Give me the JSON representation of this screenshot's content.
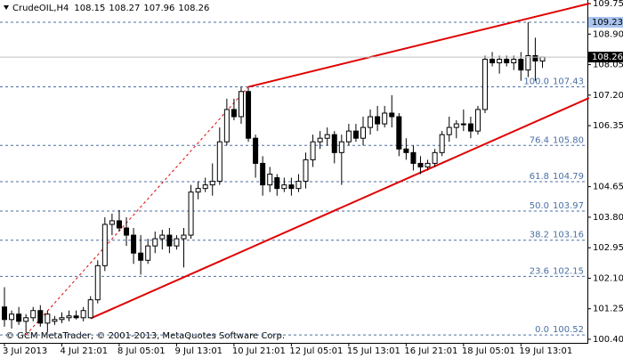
{
  "chart_data": {
    "type": "candlestick",
    "title": "CrudeOIL,H4",
    "footer": "© GCM MetaTrader, © 2001-2013, MetaQuotes Software Corp.",
    "categories": [
      "3 Jul 2013",
      null,
      null,
      null,
      null,
      null,
      null,
      null,
      "4 Jul 21:01",
      null,
      null,
      null,
      null,
      null,
      null,
      null,
      "8 Jul 05:01",
      null,
      null,
      null,
      null,
      null,
      null,
      null,
      "9 Jul 13:01",
      null,
      null,
      null,
      null,
      null,
      null,
      null,
      "10 Jul 21:01",
      null,
      null,
      null,
      null,
      null,
      null,
      null,
      "12 Jul 05:01",
      null,
      null,
      null,
      null,
      null,
      null,
      null,
      "15 Jul 13:01",
      null,
      null,
      null,
      null,
      null,
      null,
      null,
      "16 Jul 21:01",
      null,
      null,
      null,
      null,
      null,
      null,
      null,
      "18 Jul 05:01",
      null,
      null,
      null,
      null,
      null,
      null,
      null,
      "19 Jul 13:01",
      null,
      null,
      null
    ],
    "open": [
      101.3,
      100.95,
      101.1,
      100.9,
      101.0,
      101.2,
      100.85,
      100.9,
      100.95,
      101.0,
      101.05,
      101.0,
      101.0,
      101.5,
      102.45,
      103.6,
      103.7,
      103.5,
      103.3,
      102.8,
      102.6,
      103.0,
      103.2,
      103.3,
      103.0,
      103.2,
      103.3,
      104.5,
      104.6,
      104.7,
      104.8,
      105.9,
      106.8,
      106.6,
      107.3,
      106.0,
      105.3,
      104.7,
      104.9,
      104.6,
      104.7,
      104.6,
      104.8,
      105.4,
      105.9,
      106.0,
      106.1,
      105.6,
      105.9,
      106.2,
      106.0,
      106.3,
      106.6,
      106.4,
      106.7,
      106.6,
      105.7,
      105.6,
      105.3,
      105.2,
      105.3,
      105.6,
      106.1,
      106.3,
      106.4,
      106.4,
      106.2,
      106.8,
      108.2,
      108.1,
      108.2,
      108.1,
      108.2,
      107.9,
      108.3,
      108.15
    ],
    "high": [
      101.85,
      101.2,
      101.3,
      101.1,
      101.3,
      101.35,
      101.2,
      101.05,
      101.15,
      101.2,
      101.2,
      101.3,
      101.6,
      102.6,
      103.8,
      103.9,
      104.0,
      103.8,
      103.5,
      103.3,
      103.2,
      103.4,
      103.45,
      103.5,
      103.3,
      103.5,
      104.7,
      104.8,
      104.9,
      105.3,
      106.3,
      107.1,
      107.1,
      107.43,
      107.4,
      106.1,
      105.5,
      105.2,
      105.0,
      104.9,
      104.9,
      105.0,
      105.6,
      106.1,
      106.2,
      106.3,
      106.2,
      106.1,
      106.4,
      106.4,
      106.6,
      106.8,
      106.9,
      106.9,
      107.2,
      106.7,
      106.0,
      105.8,
      105.5,
      105.4,
      105.7,
      106.2,
      106.6,
      106.5,
      106.8,
      106.6,
      106.9,
      108.3,
      108.4,
      108.3,
      108.3,
      108.3,
      108.4,
      109.23,
      108.8,
      108.27
    ],
    "low": [
      100.75,
      100.7,
      100.8,
      100.6,
      100.9,
      100.75,
      100.6,
      100.8,
      100.85,
      100.9,
      100.95,
      100.9,
      100.98,
      101.4,
      102.3,
      103.3,
      103.4,
      103.0,
      102.5,
      102.2,
      102.5,
      102.8,
      102.9,
      102.8,
      102.9,
      102.4,
      103.2,
      104.3,
      104.5,
      104.4,
      104.7,
      105.8,
      106.5,
      106.4,
      105.9,
      104.9,
      104.4,
      104.5,
      104.4,
      104.5,
      104.4,
      104.5,
      104.6,
      105.2,
      105.7,
      105.8,
      105.3,
      104.7,
      105.8,
      105.9,
      105.8,
      106.1,
      106.2,
      106.3,
      106.3,
      105.5,
      105.4,
      105.1,
      105.0,
      105.1,
      105.2,
      105.5,
      105.9,
      106.0,
      106.2,
      106.0,
      106.1,
      106.7,
      108.0,
      107.8,
      108.0,
      107.9,
      107.6,
      107.7,
      107.6,
      107.96
    ],
    "close": [
      100.95,
      101.1,
      100.9,
      101.0,
      101.2,
      100.85,
      101.1,
      100.95,
      101.0,
      101.05,
      101.0,
      101.2,
      101.5,
      102.45,
      103.6,
      103.7,
      103.5,
      103.3,
      102.8,
      102.6,
      103.0,
      103.2,
      103.3,
      103.0,
      103.2,
      103.3,
      104.5,
      104.6,
      104.7,
      104.8,
      105.9,
      106.8,
      106.6,
      107.3,
      106.0,
      105.3,
      104.7,
      105.0,
      104.6,
      104.7,
      104.6,
      104.8,
      105.4,
      105.9,
      106.0,
      106.1,
      105.6,
      105.9,
      106.2,
      106.0,
      106.3,
      106.6,
      106.4,
      106.7,
      106.6,
      105.7,
      105.6,
      105.3,
      105.2,
      105.3,
      105.6,
      106.1,
      106.3,
      106.4,
      106.4,
      106.2,
      106.8,
      108.2,
      108.1,
      108.2,
      108.1,
      108.2,
      107.9,
      108.3,
      108.15,
      108.26
    ],
    "ylim": [
      100.3,
      109.85
    ],
    "yticks": [
      109.75,
      {
        "value": 108.9,
        "label": "108.90"
      },
      108.05,
      {
        "value": 107.2,
        "label": "107.20"
      },
      106.35,
      104.65,
      {
        "value": 103.8,
        "label": "103.80"
      },
      102.95,
      {
        "value": 102.1,
        "label": "102.10"
      },
      101.25,
      {
        "value": 100.4,
        "label": "100.40"
      }
    ],
    "hlines": [
      {
        "value": 109.23,
        "color": "#4a6fa5"
      }
    ],
    "fibo": {
      "color": "#4a6fa5",
      "levels": [
        {
          "ratio": "100.0",
          "value": 107.43,
          "label": "107.43"
        },
        {
          "ratio": "76.4",
          "value": 105.8,
          "label": "105.80"
        },
        {
          "ratio": "61.8",
          "value": 104.79,
          "label": "104.79"
        },
        {
          "ratio": "50.0",
          "value": 103.97,
          "label": "103.97"
        },
        {
          "ratio": "38.2",
          "value": 103.16,
          "label": "103.16"
        },
        {
          "ratio": "23.6",
          "value": 102.15,
          "label": "102.15"
        },
        {
          "ratio": "0.0",
          "value": 100.52,
          "label": "100.52"
        }
      ]
    },
    "trendlines": [
      {
        "color": "#e00000",
        "dashed": false,
        "points": [
          [
            12,
            100.98
          ],
          [
            81.5,
            107.12
          ]
        ]
      },
      {
        "color": "#e00000",
        "dashed": false,
        "points": [
          [
            34,
            107.43
          ],
          [
            81.5,
            109.75
          ]
        ]
      },
      {
        "color": "#e00000",
        "dashed": true,
        "points": [
          [
            3,
            100.52
          ],
          [
            34,
            107.43
          ]
        ]
      }
    ],
    "grid": false
  }
}
